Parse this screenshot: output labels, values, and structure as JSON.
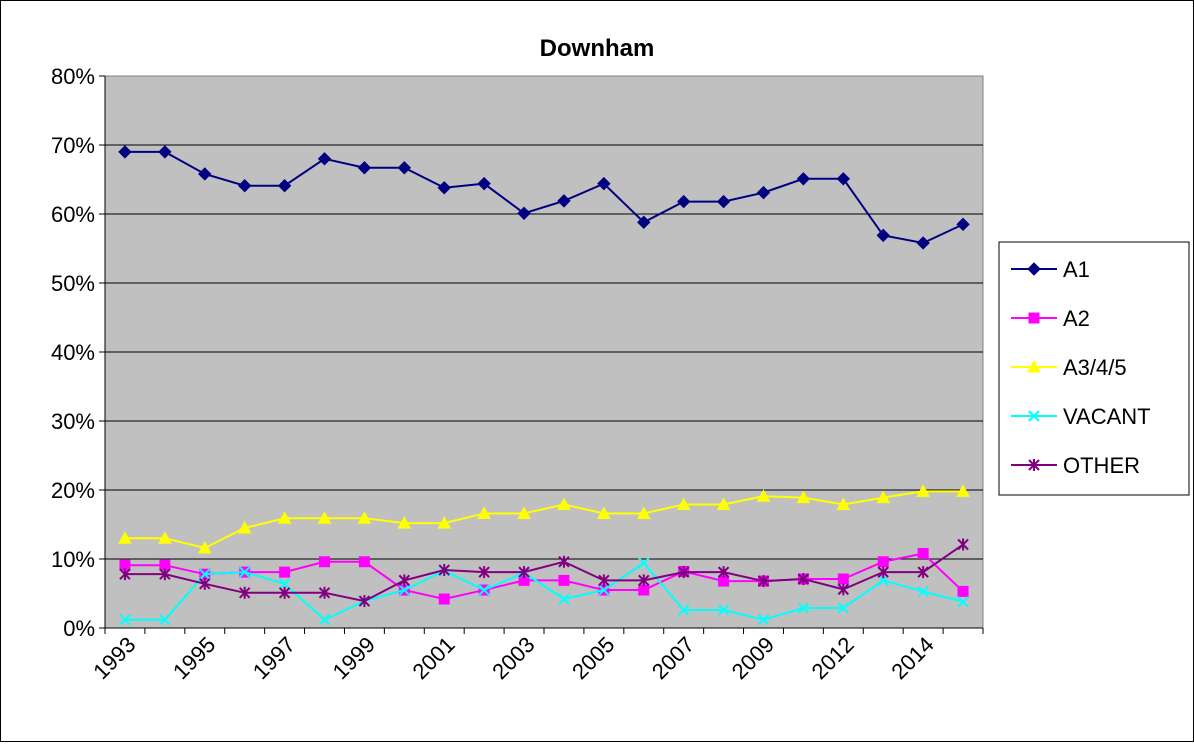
{
  "chart_data": {
    "type": "line",
    "title": "Downham",
    "xlabel": "",
    "ylabel": "",
    "ylim": [
      0,
      80
    ],
    "y_ticks": [
      "0%",
      "10%",
      "20%",
      "30%",
      "40%",
      "50%",
      "60%",
      "70%",
      "80%"
    ],
    "x_tick_labels": [
      "1993",
      "1995",
      "1997",
      "1999",
      "2001",
      "2003",
      "2005",
      "2007",
      "2009",
      "2012",
      "2014"
    ],
    "grid": true,
    "legend_position": "right",
    "series": [
      {
        "name": "A1",
        "color": "#000080",
        "marker": "diamond",
        "values": [
          69,
          69,
          65.8,
          64.1,
          64.1,
          68,
          66.7,
          66.7,
          63.8,
          64.4,
          60.1,
          61.9,
          64.4,
          58.8,
          61.8,
          61.8,
          63.1,
          65.1,
          65.1,
          56.9,
          55.8,
          58.5
        ]
      },
      {
        "name": "A2",
        "color": "#FF00FF",
        "marker": "square",
        "values": [
          9.1,
          9.1,
          7.8,
          8.1,
          8.1,
          9.6,
          9.6,
          5.5,
          4.2,
          5.5,
          6.9,
          6.9,
          5.5,
          5.5,
          8.2,
          6.8,
          6.8,
          7.1,
          7.1,
          9.6,
          10.8,
          5.3
        ]
      },
      {
        "name": "A3/4/5",
        "color": "#FFFF00",
        "marker": "triangle",
        "values": [
          13,
          13,
          11.6,
          14.5,
          15.9,
          15.9,
          15.9,
          15.2,
          15.2,
          16.6,
          16.6,
          17.9,
          16.6,
          16.6,
          17.9,
          17.9,
          19.1,
          18.9,
          17.9,
          18.9,
          19.8,
          19.8
        ]
      },
      {
        "name": "VACANT",
        "color": "#00FFFF",
        "marker": "x",
        "values": [
          1.2,
          1.2,
          7.8,
          8.1,
          6.4,
          1.2,
          3.9,
          5.5,
          8.3,
          5.5,
          8,
          4.2,
          5.5,
          9.4,
          2.6,
          2.6,
          1.2,
          2.9,
          2.9,
          6.9,
          5.3,
          3.8
        ]
      },
      {
        "name": "OTHER",
        "color": "#800080",
        "marker": "star",
        "values": [
          7.8,
          7.8,
          6.4,
          5.1,
          5.1,
          5.1,
          3.9,
          6.9,
          8.4,
          8.1,
          8.1,
          9.6,
          6.9,
          6.9,
          8.1,
          8.1,
          6.8,
          7.1,
          5.6,
          8.1,
          8.1,
          12.1
        ]
      }
    ]
  }
}
